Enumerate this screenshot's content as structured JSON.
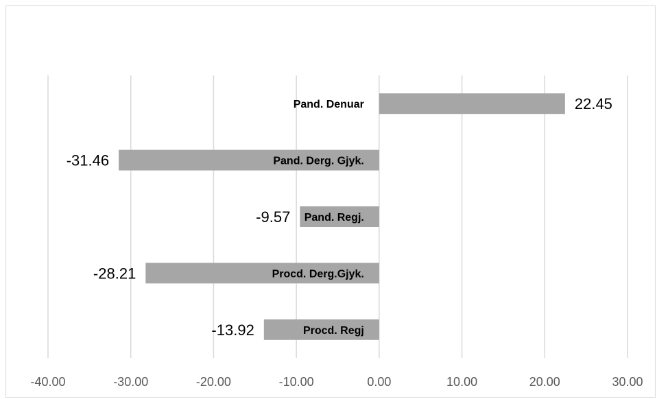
{
  "chart_data": {
    "type": "bar",
    "orientation": "horizontal",
    "title": "",
    "xlabel": "",
    "ylabel": "",
    "categories": [
      "Pand. Denuar",
      "Pand. Derg. Gjyk.",
      "Pand. Regj.",
      "Procd. Derg.Gjyk.",
      "Procd. Regj"
    ],
    "values": [
      22.45,
      -31.46,
      -9.57,
      -28.21,
      -13.92
    ],
    "data_labels": [
      "22.45",
      "-31.46",
      "-9.57",
      "-28.21",
      "-13.92"
    ],
    "xlim": [
      -40,
      30
    ],
    "x_ticks": [
      -40,
      -30,
      -20,
      -10,
      0,
      10,
      20,
      30
    ],
    "x_tick_labels": [
      "-40.00",
      "-30.00",
      "-20.00",
      "-10.00",
      "0.00",
      "10.00",
      "20.00",
      "30.00"
    ],
    "grid": true,
    "legend": "none",
    "bar_color": "#a6a6a6",
    "grid_color": "#d9d9d9"
  }
}
